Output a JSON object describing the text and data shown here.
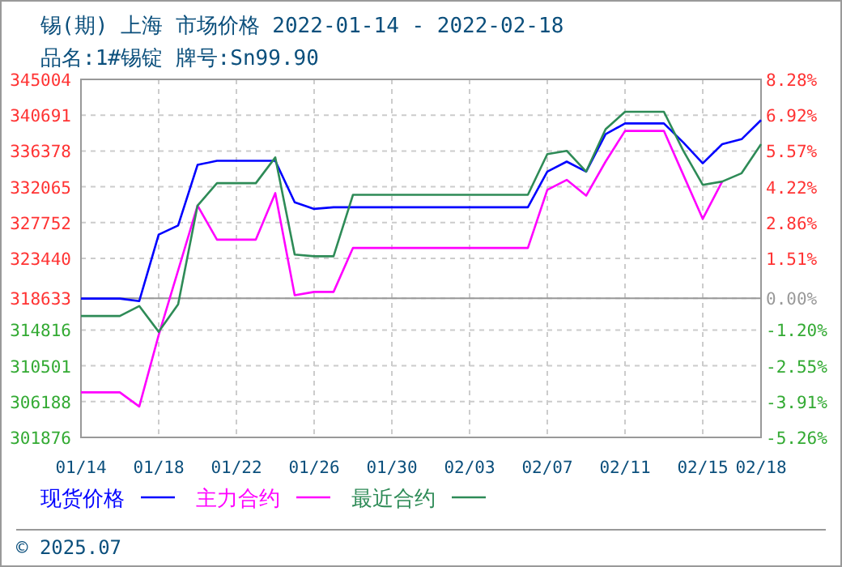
{
  "chart_data": {
    "type": "line",
    "title": "锡(期) 上海 市场价格 2022-01-14 - 2022-02-18",
    "subtitle": "品名:1#锡锭 牌号:Sn99.90",
    "x": [
      "2022-01-14",
      "2022-01-15",
      "2022-01-16",
      "2022-01-17",
      "2022-01-18",
      "2022-01-19",
      "2022-01-20",
      "2022-01-21",
      "2022-01-22",
      "2022-01-23",
      "2022-01-24",
      "2022-01-25",
      "2022-01-26",
      "2022-01-27",
      "2022-01-28",
      "2022-01-29",
      "2022-01-30",
      "2022-01-31",
      "2022-02-01",
      "2022-02-02",
      "2022-02-03",
      "2022-02-04",
      "2022-02-05",
      "2022-02-06",
      "2022-02-07",
      "2022-02-08",
      "2022-02-09",
      "2022-02-10",
      "2022-02-11",
      "2022-02-12",
      "2022-02-13",
      "2022-02-14",
      "2022-02-15",
      "2022-02-16",
      "2022-02-17",
      "2022-02-18"
    ],
    "series": [
      {
        "name": "现货价格",
        "color": "#0000ff",
        "values": [
          318600,
          318600,
          318600,
          318300,
          326300,
          327400,
          334700,
          335200,
          335200,
          335200,
          335200,
          330200,
          329400,
          329600,
          329600,
          329600,
          329600,
          329600,
          329600,
          329600,
          329600,
          329600,
          329600,
          329600,
          333900,
          335100,
          333900,
          338400,
          339700,
          339700,
          339700,
          337400,
          334900,
          337200,
          337800,
          340100
        ]
      },
      {
        "name": "主力合约",
        "color": "#ff00ff",
        "values": [
          307300,
          307300,
          307300,
          305600,
          314200,
          322000,
          329800,
          325700,
          325700,
          325700,
          331300,
          319000,
          319400,
          319400,
          324700,
          324700,
          324700,
          324700,
          324700,
          324700,
          324700,
          324700,
          324700,
          324700,
          331700,
          332900,
          331000,
          335100,
          338800,
          338800,
          338800,
          333500,
          328200,
          332700,
          null,
          null
        ]
      },
      {
        "name": "最近合约",
        "color": "#2e8b57",
        "values": [
          316500,
          316500,
          316500,
          317700,
          314600,
          317900,
          329800,
          332500,
          332500,
          332500,
          335600,
          323900,
          323700,
          323700,
          331100,
          331100,
          331100,
          331100,
          331100,
          331100,
          331100,
          331100,
          331100,
          331100,
          336000,
          336400,
          333900,
          339000,
          341100,
          341100,
          341100,
          336400,
          332300,
          332700,
          333700,
          337200
        ]
      }
    ],
    "xlim": [
      "2022-01-14",
      "2022-02-18"
    ],
    "xticks": [
      {
        "value": "2022-01-14",
        "label": "01/14"
      },
      {
        "value": "2022-01-18",
        "label": "01/18"
      },
      {
        "value": "2022-01-22",
        "label": "01/22"
      },
      {
        "value": "2022-01-26",
        "label": "01/26"
      },
      {
        "value": "2022-01-30",
        "label": "01/30"
      },
      {
        "value": "2022-02-03",
        "label": "02/03"
      },
      {
        "value": "2022-02-07",
        "label": "02/07"
      },
      {
        "value": "2022-02-11",
        "label": "02/11"
      },
      {
        "value": "2022-02-15",
        "label": "02/15"
      },
      {
        "value": "2022-02-18",
        "label": "02/18"
      }
    ],
    "ylim": [
      301876,
      345004
    ],
    "yticks": [
      345004,
      340691,
      336378,
      332065,
      327752,
      323440,
      318633,
      314816,
      310501,
      306188,
      301876
    ],
    "y2lim": [
      -5.26,
      8.28
    ],
    "y2ticks": [
      {
        "value": 8.28,
        "label": "8.28%"
      },
      {
        "value": 6.92,
        "label": "6.92%"
      },
      {
        "value": 5.57,
        "label": "5.57%"
      },
      {
        "value": 4.22,
        "label": "4.22%"
      },
      {
        "value": 2.86,
        "label": "2.86%"
      },
      {
        "value": 1.51,
        "label": "1.51%"
      },
      {
        "value": 0,
        "label": "0.00%"
      },
      {
        "value": -1.2,
        "label": "-1.20%"
      },
      {
        "value": -2.55,
        "label": "-2.55%"
      },
      {
        "value": -3.91,
        "label": "-3.91%"
      },
      {
        "value": -5.26,
        "label": "-5.26%"
      }
    ],
    "ref_lines": [
      {
        "axis": "y2",
        "value": 0,
        "color": "#999999",
        "line_style": "solid"
      }
    ],
    "grid": true,
    "legend": "bottom",
    "line_style": "solid",
    "marker": "none",
    "annotations": [
      "© 2025.07"
    ]
  }
}
